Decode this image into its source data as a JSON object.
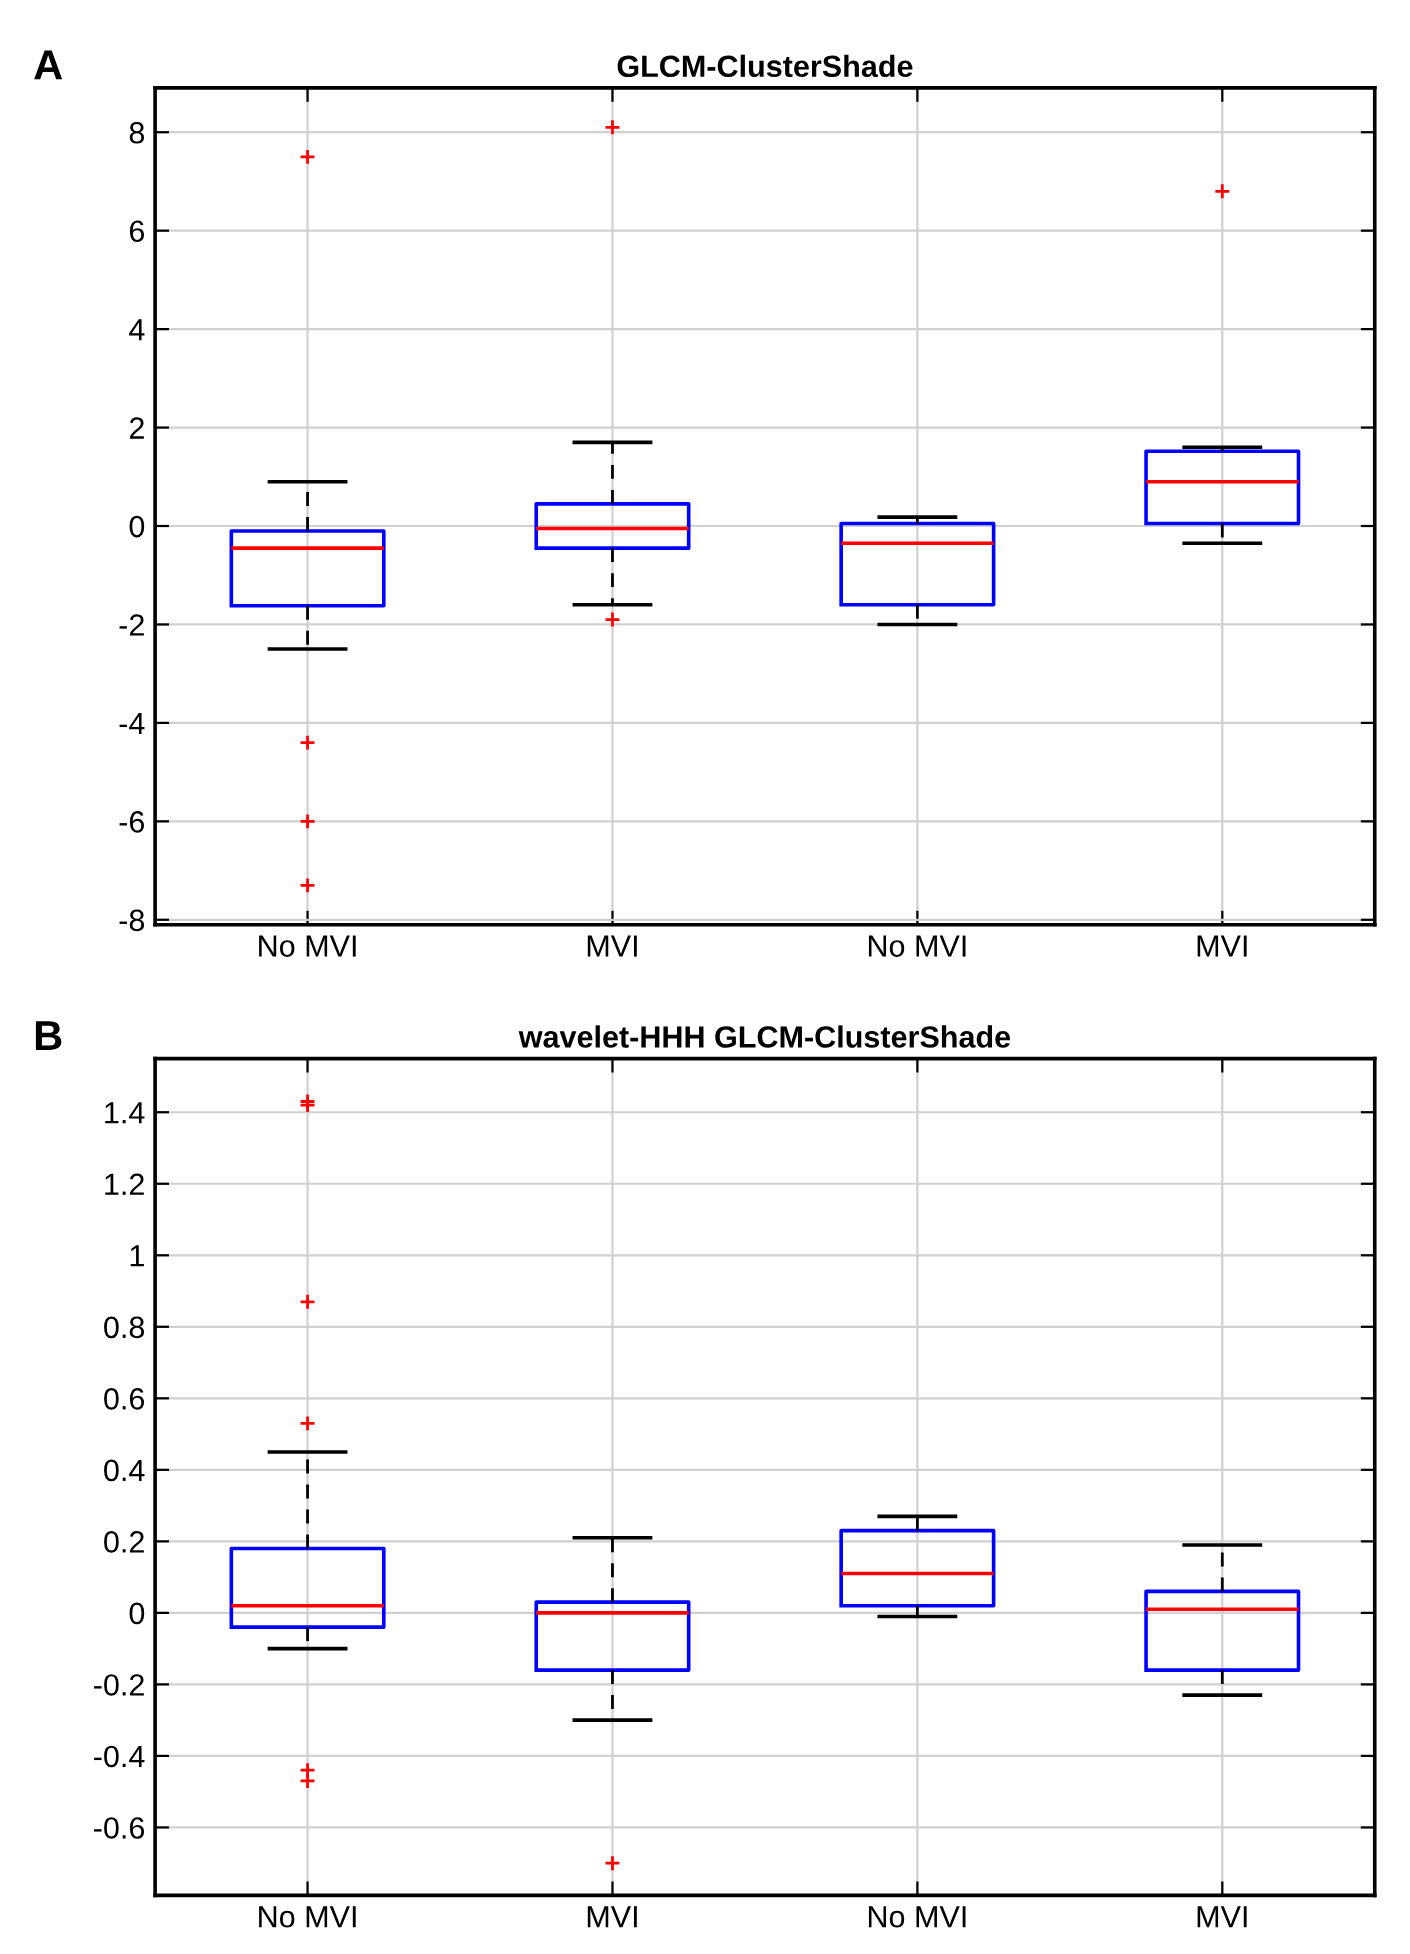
{
  "chart_data": [
    {
      "type": "box",
      "title": "GLCM-ClusterShade",
      "annotations": [
        "A"
      ],
      "categories": [
        "No MVI",
        "MVI",
        "No MVI",
        "MVI"
      ],
      "ylim": [
        -8.1,
        8.9
      ],
      "yticks": [
        -8,
        -6,
        -4,
        -2,
        0,
        2,
        4,
        6,
        8
      ],
      "grid": true,
      "color": "#0000ff",
      "boxes": [
        {
          "low": -2.5,
          "q1": -1.62,
          "median": -0.45,
          "q3": -0.1,
          "high": 0.9,
          "outliers": [
            7.5,
            -4.4,
            -6.0,
            -7.3
          ]
        },
        {
          "low": -1.6,
          "q1": -0.45,
          "median": -0.05,
          "q3": 0.45,
          "high": 1.7,
          "outliers": [
            8.1,
            -1.9
          ]
        },
        {
          "low": -2.0,
          "q1": -1.6,
          "median": -0.35,
          "q3": 0.05,
          "high": 0.18
        },
        {
          "low": -0.35,
          "q1": 0.05,
          "median": 0.9,
          "q3": 1.52,
          "high": 1.6,
          "outliers": [
            6.8
          ]
        }
      ]
    },
    {
      "type": "box",
      "title": "wavelet-HHH GLCM-ClusterShade",
      "annotations": [
        "B"
      ],
      "categories": [
        "No MVI",
        "MVI",
        "No MVI",
        "MVI"
      ],
      "ylim": [
        -0.79,
        1.55
      ],
      "yticks": [
        -0.6,
        -0.4,
        -0.2,
        0,
        0.2,
        0.4,
        0.6,
        0.8,
        1,
        1.2,
        1.4
      ],
      "grid": true,
      "color": "#0000ff",
      "boxes": [
        {
          "low": -0.1,
          "q1": -0.04,
          "median": 0.02,
          "q3": 0.18,
          "high": 0.45,
          "outliers": [
            1.43,
            1.42,
            0.87,
            0.53,
            -0.44,
            -0.47
          ]
        },
        {
          "low": -0.3,
          "q1": -0.16,
          "median": 0.0,
          "q3": 0.03,
          "high": 0.21,
          "outliers": [
            -0.7
          ]
        },
        {
          "low": -0.01,
          "q1": 0.02,
          "median": 0.11,
          "q3": 0.23,
          "high": 0.27
        },
        {
          "low": -0.23,
          "q1": -0.16,
          "median": 0.01,
          "q3": 0.06,
          "high": 0.19
        }
      ]
    }
  ]
}
